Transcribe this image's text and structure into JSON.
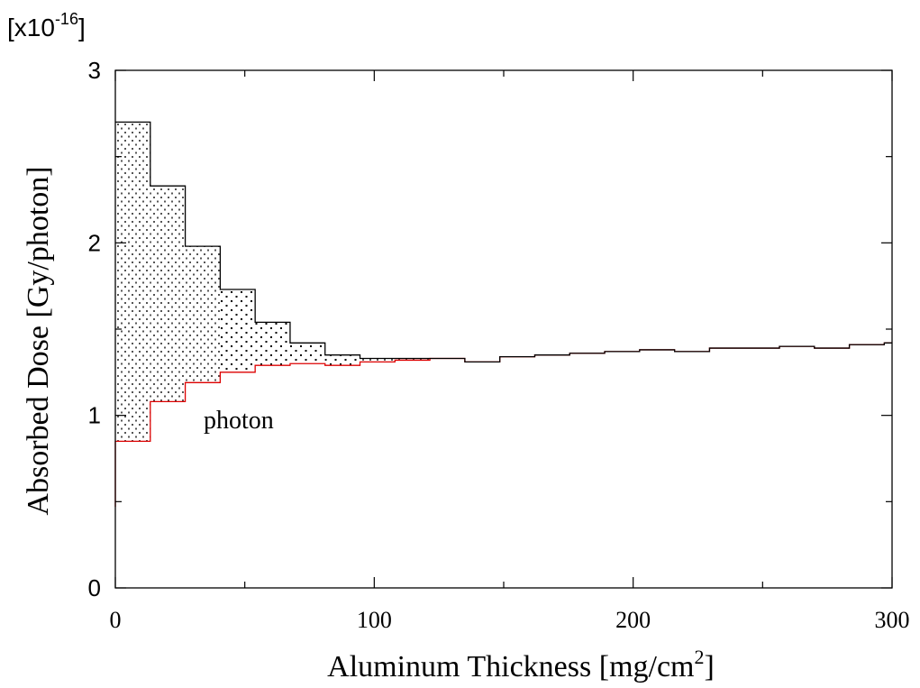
{
  "chart_data": {
    "type": "area",
    "scale_label": {
      "prefix": "[x10",
      "exponent": "-16",
      "suffix": "]"
    },
    "ylabel": "Absorbed Dose [Gy/photon]",
    "xlabel": {
      "text": "Aluminum Thickness [mg/cm",
      "superscript": "2",
      "suffix": "]"
    },
    "xlim": [
      0,
      300
    ],
    "ylim": [
      0,
      3
    ],
    "x_ticks": [
      {
        "value": 0,
        "label": "0"
      },
      {
        "value": 100,
        "label": "100"
      },
      {
        "value": 200,
        "label": "200"
      },
      {
        "value": 300,
        "label": "300"
      }
    ],
    "y_ticks": [
      {
        "value": 0,
        "label": "0"
      },
      {
        "value": 1,
        "label": "1"
      },
      {
        "value": 2,
        "label": "2"
      },
      {
        "value": 3,
        "label": "3"
      }
    ],
    "annotation": "photon",
    "bin_edges": [
      0,
      13.5,
      27,
      40.5,
      54,
      67.5,
      81,
      94.5,
      108,
      121.5,
      135,
      148.5,
      162,
      175.5,
      189,
      202.5,
      216,
      229.5,
      243,
      256.5,
      270,
      283.5,
      297,
      300
    ],
    "series": [
      {
        "role": "total",
        "color": "#000000",
        "values": [
          2.7,
          2.33,
          1.98,
          1.73,
          1.54,
          1.42,
          1.35,
          1.33,
          1.33,
          1.33,
          1.31,
          1.34,
          1.35,
          1.36,
          1.37,
          1.38,
          1.37,
          1.39,
          1.39,
          1.4,
          1.39,
          1.41,
          1.42
        ]
      },
      {
        "role": "photon",
        "color": "#dd0000",
        "values": [
          0.85,
          1.08,
          1.19,
          1.25,
          1.29,
          1.3,
          1.29,
          1.31,
          1.32,
          1.33,
          1.31,
          1.34,
          1.35,
          1.36,
          1.37,
          1.38,
          1.37,
          1.39,
          1.39,
          1.4,
          1.39,
          1.41,
          1.42
        ]
      }
    ],
    "photon_start_value": 0.47
  }
}
